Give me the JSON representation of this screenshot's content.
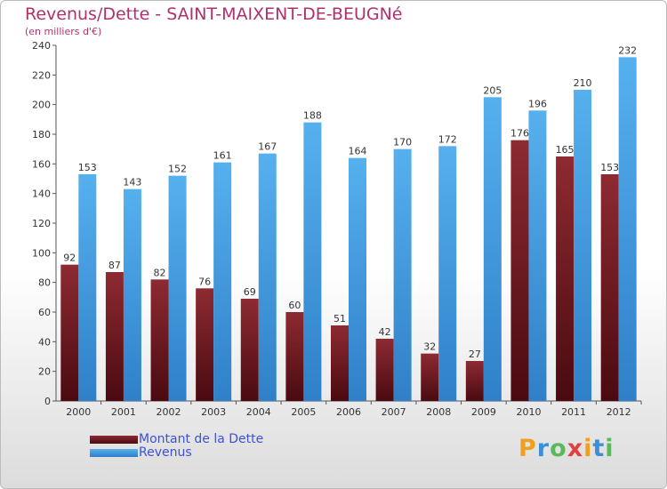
{
  "chart_data": {
    "type": "bar",
    "title": "Revenus/Dette - SAINT-MAIXENT-DE-BEUGNé",
    "subtitle": "(en milliers d'€)",
    "categories": [
      "2000",
      "2001",
      "2002",
      "2003",
      "2004",
      "2005",
      "2006",
      "2007",
      "2008",
      "2009",
      "2010",
      "2011",
      "2012"
    ],
    "series": [
      {
        "name": "Montant de la Dette",
        "color": "#7a1a22",
        "values": [
          92,
          87,
          82,
          76,
          69,
          60,
          51,
          42,
          32,
          27,
          176,
          165,
          153
        ]
      },
      {
        "name": "Revenus",
        "color": "#4aa3e6",
        "values": [
          153,
          143,
          152,
          161,
          167,
          188,
          164,
          170,
          172,
          205,
          196,
          210,
          232
        ]
      }
    ],
    "ylim": [
      0,
      240
    ],
    "yticks": [
      0,
      20,
      40,
      60,
      80,
      100,
      120,
      140,
      160,
      180,
      200,
      220,
      240
    ],
    "grid": false,
    "legend_position": "bottom-left"
  },
  "logo": {
    "text": "Proxiti",
    "letters": [
      {
        "ch": "P",
        "color": "#f0a020"
      },
      {
        "ch": "r",
        "color": "#3a8fd8"
      },
      {
        "ch": "o",
        "color": "#5cb85c"
      },
      {
        "ch": "x",
        "color": "#e04040"
      },
      {
        "ch": "i",
        "color": "#f0a020"
      },
      {
        "ch": "t",
        "color": "#3a8fd8"
      },
      {
        "ch": "i",
        "color": "#5cb85c"
      }
    ]
  }
}
